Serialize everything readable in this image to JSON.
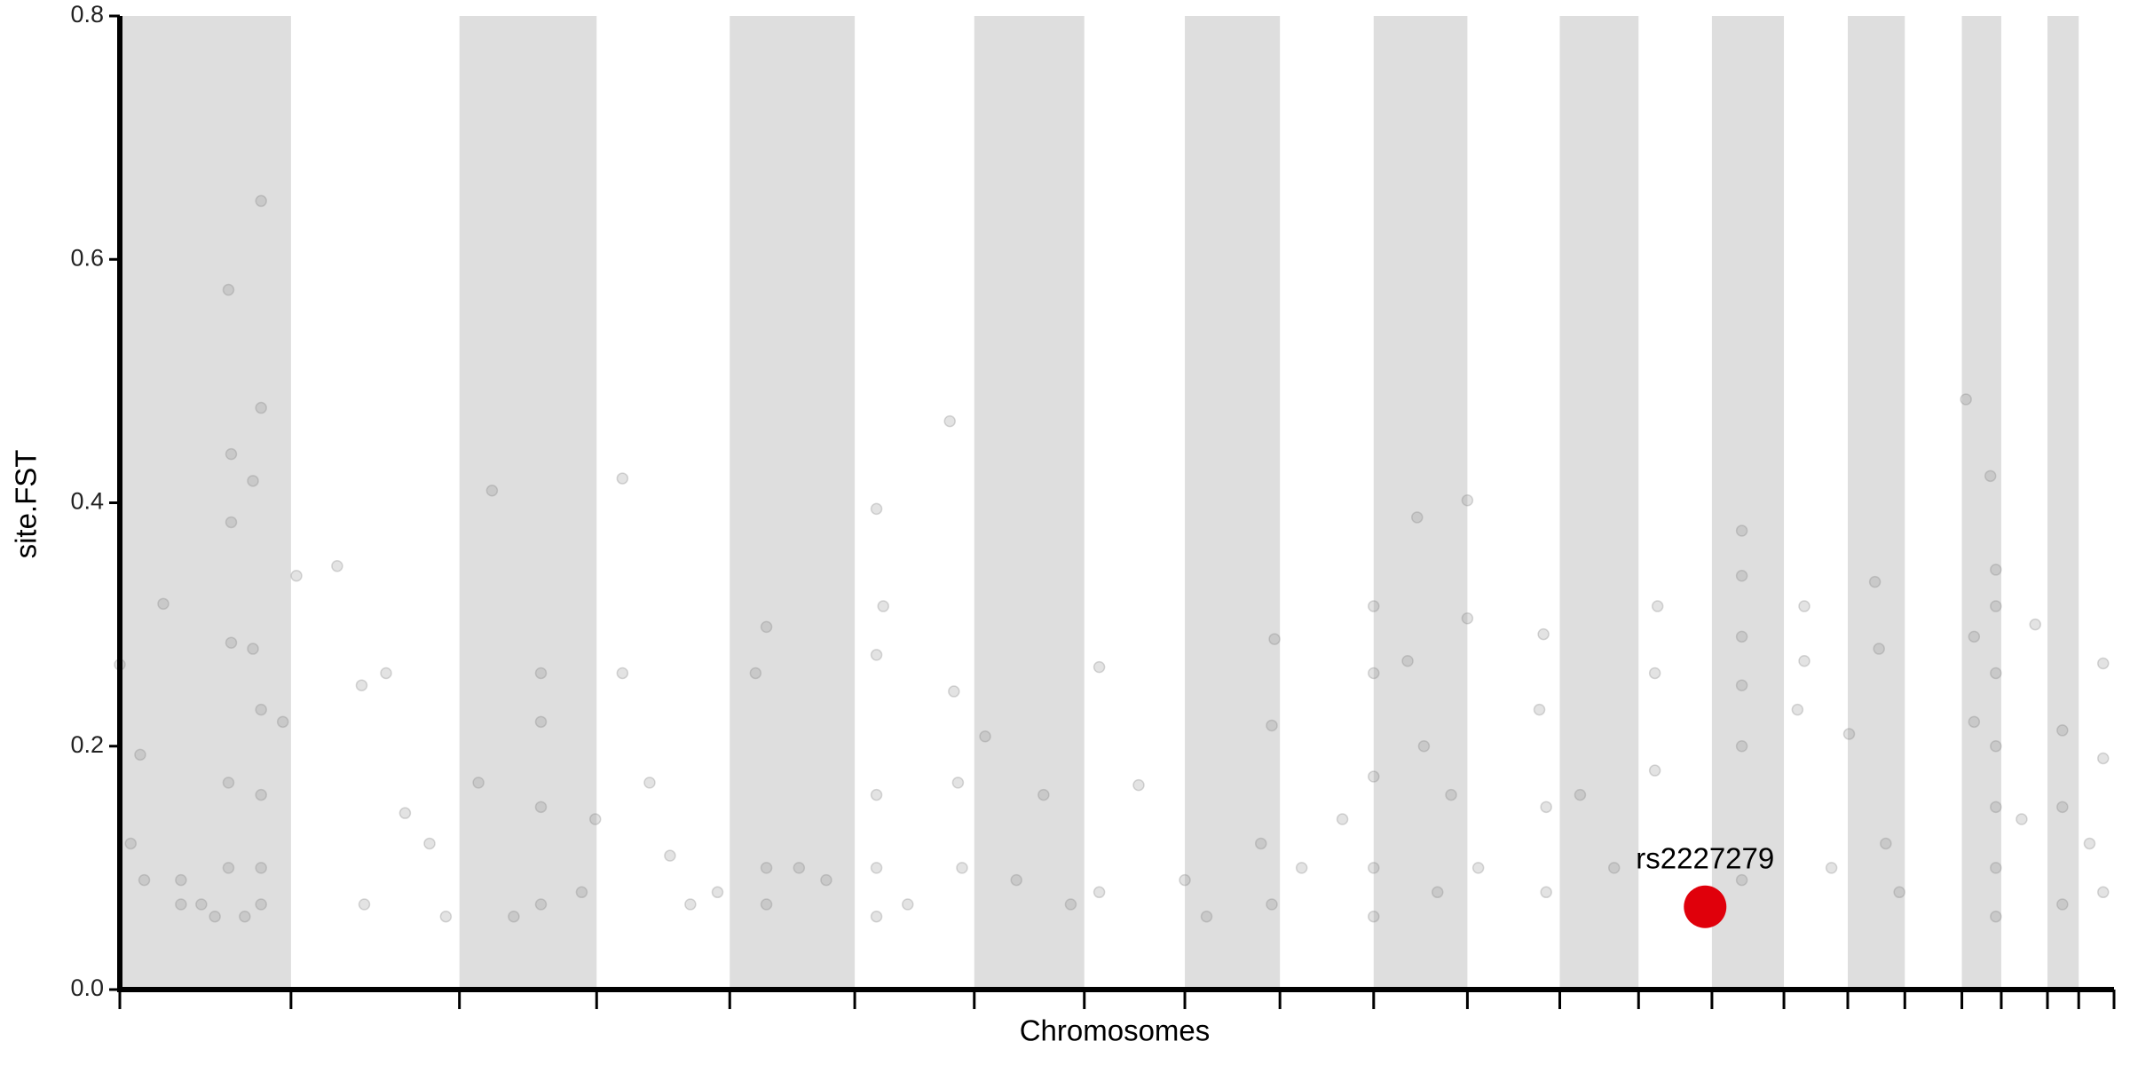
{
  "chart_data": {
    "type": "scatter",
    "x_label": "Chromosomes",
    "y_label": "site.FST",
    "xlim": [
      0,
      1468
    ],
    "xticks": [
      0,
      126,
      250,
      351,
      449,
      541,
      629,
      710,
      784,
      854,
      923,
      992,
      1060,
      1118,
      1172,
      1225,
      1272,
      1314,
      1356,
      1385,
      1419,
      1442,
      1468
    ],
    "ylim": [
      0,
      0.8
    ],
    "yticks": [
      {
        "value": 0,
        "label": "0.0"
      },
      {
        "value": 0.2,
        "label": "0.2"
      },
      {
        "value": 0.4,
        "label": "0.4"
      },
      {
        "value": 0.6,
        "label": "0.6"
      },
      {
        "value": 0.8,
        "label": "0.8"
      }
    ],
    "color": "#808080",
    "band_color": "#dedede",
    "x": [
      80,
      104,
      104,
      82,
      98,
      82,
      82,
      98,
      32,
      0,
      15,
      8,
      18,
      45,
      45,
      70,
      80,
      80,
      104,
      104,
      104,
      104,
      120,
      92,
      60,
      130,
      160,
      178,
      180,
      196,
      210,
      240,
      228,
      274,
      264,
      310,
      310,
      310,
      310,
      290,
      350,
      340,
      370,
      370,
      390,
      405,
      420,
      440,
      476,
      468,
      476,
      476,
      500,
      520,
      557,
      557,
      557,
      557,
      557,
      562,
      580,
      611,
      614,
      617,
      637,
      620,
      660,
      680,
      700,
      721,
      721,
      750,
      784,
      800,
      840,
      850,
      848,
      848,
      870,
      900,
      923,
      923,
      923,
      923,
      923,
      955,
      948,
      960,
      992,
      992,
      980,
      970,
      1000,
      1048,
      1045,
      1050,
      1050,
      1075,
      1100,
      1132,
      1130,
      1130,
      1160,
      1194,
      1194,
      1194,
      1194,
      1194,
      1194,
      1240,
      1240,
      1235,
      1260,
      1273,
      1292,
      1295,
      1300,
      1310,
      1359,
      1377,
      1381,
      1381,
      1381,
      1381,
      1381,
      1381,
      1381,
      1365,
      1365,
      1410,
      1400,
      1430,
      1430,
      1430,
      1460,
      1460,
      1460,
      1450
    ],
    "values": [
      0.575,
      0.648,
      0.478,
      0.44,
      0.418,
      0.384,
      0.285,
      0.28,
      0.317,
      0.267,
      0.193,
      0.12,
      0.09,
      0.07,
      0.09,
      0.06,
      0.17,
      0.1,
      0.23,
      0.16,
      0.07,
      0.1,
      0.22,
      0.06,
      0.07,
      0.34,
      0.348,
      0.25,
      0.07,
      0.26,
      0.145,
      0.06,
      0.12,
      0.41,
      0.17,
      0.26,
      0.22,
      0.15,
      0.07,
      0.06,
      0.14,
      0.08,
      0.42,
      0.26,
      0.17,
      0.11,
      0.07,
      0.08,
      0.298,
      0.26,
      0.1,
      0.07,
      0.1,
      0.09,
      0.395,
      0.275,
      0.16,
      0.1,
      0.06,
      0.315,
      0.07,
      0.467,
      0.245,
      0.17,
      0.208,
      0.1,
      0.09,
      0.16,
      0.07,
      0.265,
      0.08,
      0.168,
      0.09,
      0.06,
      0.12,
      0.288,
      0.217,
      0.07,
      0.1,
      0.14,
      0.315,
      0.26,
      0.175,
      0.1,
      0.06,
      0.388,
      0.27,
      0.2,
      0.402,
      0.305,
      0.16,
      0.08,
      0.1,
      0.292,
      0.23,
      0.15,
      0.08,
      0.16,
      0.1,
      0.315,
      0.26,
      0.18,
      0.07,
      0.377,
      0.34,
      0.29,
      0.25,
      0.2,
      0.09,
      0.315,
      0.27,
      0.23,
      0.1,
      0.21,
      0.335,
      0.28,
      0.12,
      0.08,
      0.485,
      0.422,
      0.345,
      0.315,
      0.26,
      0.2,
      0.15,
      0.1,
      0.06,
      0.29,
      0.22,
      0.3,
      0.14,
      0.213,
      0.15,
      0.07,
      0.268,
      0.19,
      0.08,
      0.12
    ],
    "highlight": {
      "label": "rs2227279",
      "x": 1167,
      "value": 0.068,
      "color": "#e0000b"
    }
  }
}
